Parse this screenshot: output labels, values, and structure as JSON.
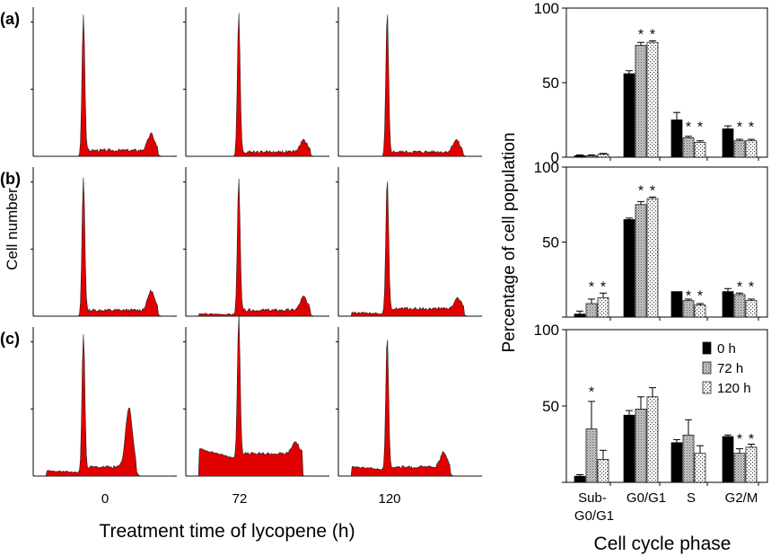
{
  "figure": {
    "row_labels": [
      "(a)",
      "(b)",
      "(c)"
    ],
    "histogram_ylabel": "Cell number",
    "histogram_xlabel": "Treatment time of lycopene (h)",
    "time_labels": [
      "0",
      "72",
      "120"
    ],
    "bar_ylabel": "Percentage of cell population",
    "bar_xlabel": "Cell cycle phase",
    "category_labels": [
      [
        "Sub-",
        "G0/G1"
      ],
      [
        "G0/G1"
      ],
      [
        "S"
      ],
      [
        "G2/M"
      ]
    ]
  },
  "colors": {
    "histogram_fill": "#e00000",
    "bar_0h": "#000000",
    "bar_72h_pattern": "crosshatch-gray",
    "bar_120h_pattern": "dotted-white"
  },
  "chart_data": [
    {
      "type": "area",
      "panel": "(a) histograms",
      "x": [
        "0",
        "72",
        "120"
      ],
      "series": [
        {
          "time": "0",
          "g1_peak_height": 0.95,
          "g2_peak_height": 0.11,
          "g2_peak_pos": 0.84,
          "shoulder": 0.03,
          "left_shoulder": 0.0
        },
        {
          "time": "72",
          "g1_peak_height": 0.95,
          "g2_peak_height": 0.08,
          "g2_peak_pos": 0.84,
          "shoulder": 0.02,
          "left_shoulder": 0.0
        },
        {
          "time": "120",
          "g1_peak_height": 0.95,
          "g2_peak_height": 0.08,
          "g2_peak_pos": 0.84,
          "shoulder": 0.02,
          "left_shoulder": 0.0
        }
      ]
    },
    {
      "type": "area",
      "panel": "(b) histograms",
      "x": [
        "0",
        "72",
        "120"
      ],
      "series": [
        {
          "time": "0",
          "g1_peak_height": 0.93,
          "g2_peak_height": 0.13,
          "g2_peak_pos": 0.84,
          "shoulder": 0.03,
          "left_shoulder": 0.0
        },
        {
          "time": "72",
          "g1_peak_height": 0.9,
          "g2_peak_height": 0.09,
          "g2_peak_pos": 0.84,
          "shoulder": 0.03,
          "left_shoulder": 0.01
        },
        {
          "time": "120",
          "g1_peak_height": 0.9,
          "g2_peak_height": 0.07,
          "g2_peak_pos": 0.85,
          "shoulder": 0.04,
          "left_shoulder": 0.02
        }
      ]
    },
    {
      "type": "area",
      "panel": "(c) histograms",
      "x": [
        "0",
        "72",
        "120"
      ],
      "series": [
        {
          "time": "0",
          "g1_peak_height": 0.95,
          "g2_peak_height": 0.4,
          "g2_peak_pos": 0.68,
          "shoulder": 0.05,
          "left_shoulder": 0.03
        },
        {
          "time": "72",
          "g1_peak_height": 0.95,
          "g2_peak_height": 0.08,
          "g2_peak_pos": 0.78,
          "shoulder": 0.14,
          "left_shoulder": 0.18
        },
        {
          "time": "120",
          "g1_peak_height": 0.9,
          "g2_peak_height": 0.1,
          "g2_peak_pos": 0.75,
          "shoulder": 0.05,
          "left_shoulder": 0.06
        }
      ]
    },
    {
      "type": "bar",
      "panel": "(a) cell cycle",
      "ylim": [
        0,
        100
      ],
      "yticks": [
        "0",
        "50",
        "100"
      ],
      "categories": [
        "Sub-G0/G1",
        "G0/G1",
        "S",
        "G2/M"
      ],
      "series": [
        {
          "name": "0 h",
          "values": [
            1,
            56,
            25,
            19
          ],
          "errors": [
            0.5,
            2,
            5,
            2
          ]
        },
        {
          "name": "72 h",
          "values": [
            1,
            75,
            13,
            11
          ],
          "errors": [
            0.5,
            2,
            1,
            1
          ]
        },
        {
          "name": "120 h",
          "values": [
            2,
            77,
            10,
            11
          ],
          "errors": [
            0.5,
            1,
            1,
            1
          ]
        }
      ],
      "annotations": [
        {
          "text": "*",
          "category": "G0/G1",
          "series": "72 h",
          "y": 84
        },
        {
          "text": "*",
          "category": "G0/G1",
          "series": "120 h",
          "y": 84
        },
        {
          "text": "*",
          "category": "S",
          "series": "72 h",
          "y": 22
        },
        {
          "text": "*",
          "category": "S",
          "series": "120 h",
          "y": 22
        },
        {
          "text": "*",
          "category": "G2/M",
          "series": "72 h",
          "y": 22
        },
        {
          "text": "*",
          "category": "G2/M",
          "series": "120 h",
          "y": 22
        }
      ]
    },
    {
      "type": "bar",
      "panel": "(b) cell cycle",
      "ylim": [
        0,
        100
      ],
      "yticks": [
        "0",
        "50",
        "100"
      ],
      "categories": [
        "Sub-G0/G1",
        "G0/G1",
        "S",
        "G2/M"
      ],
      "series": [
        {
          "name": "0 h",
          "values": [
            2,
            65,
            17,
            17
          ],
          "errors": [
            2,
            1,
            0,
            2
          ]
        },
        {
          "name": "72 h",
          "values": [
            9,
            75,
            11,
            15
          ],
          "errors": [
            3,
            2,
            1,
            1
          ]
        },
        {
          "name": "120 h",
          "values": [
            13,
            79,
            8,
            11
          ],
          "errors": [
            3,
            1,
            1,
            1
          ]
        }
      ],
      "annotations": [
        {
          "text": "*",
          "category": "Sub-G0/G1",
          "series": "72 h",
          "y": 22
        },
        {
          "text": "*",
          "category": "Sub-G0/G1",
          "series": "120 h",
          "y": 22
        },
        {
          "text": "*",
          "category": "G0/G1",
          "series": "72 h",
          "y": 86
        },
        {
          "text": "*",
          "category": "G0/G1",
          "series": "120 h",
          "y": 86
        },
        {
          "text": "*",
          "category": "S",
          "series": "72 h",
          "y": 16
        },
        {
          "text": "*",
          "category": "S",
          "series": "120 h",
          "y": 16
        },
        {
          "text": "*",
          "category": "G2/M",
          "series": "72 h",
          "y": 22
        },
        {
          "text": "*",
          "category": "G2/M",
          "series": "120 h",
          "y": 22
        }
      ]
    },
    {
      "type": "bar",
      "panel": "(c) cell cycle",
      "ylim": [
        0,
        100
      ],
      "yticks": [
        "0",
        "50",
        "100"
      ],
      "categories": [
        "Sub-G0/G1",
        "G0/G1",
        "S",
        "G2/M"
      ],
      "legend": {
        "position": "top-right",
        "entries": [
          "0 h",
          "72 h",
          "120 h"
        ]
      },
      "series": [
        {
          "name": "0 h",
          "values": [
            4,
            44,
            26,
            30
          ],
          "errors": [
            1,
            3,
            2,
            1
          ]
        },
        {
          "name": "72 h",
          "values": [
            35,
            48,
            31,
            19
          ],
          "errors": [
            18,
            8,
            10,
            3
          ]
        },
        {
          "name": "120 h",
          "values": [
            15,
            56,
            19,
            23
          ],
          "errors": [
            6,
            6,
            5,
            2
          ]
        }
      ],
      "annotations": [
        {
          "text": "*",
          "category": "Sub-G0/G1",
          "series": "72 h",
          "y": 61
        },
        {
          "text": "*",
          "category": "G2/M",
          "series": "72 h",
          "y": 30
        },
        {
          "text": "*",
          "category": "G2/M",
          "series": "120 h",
          "y": 30
        }
      ]
    }
  ]
}
